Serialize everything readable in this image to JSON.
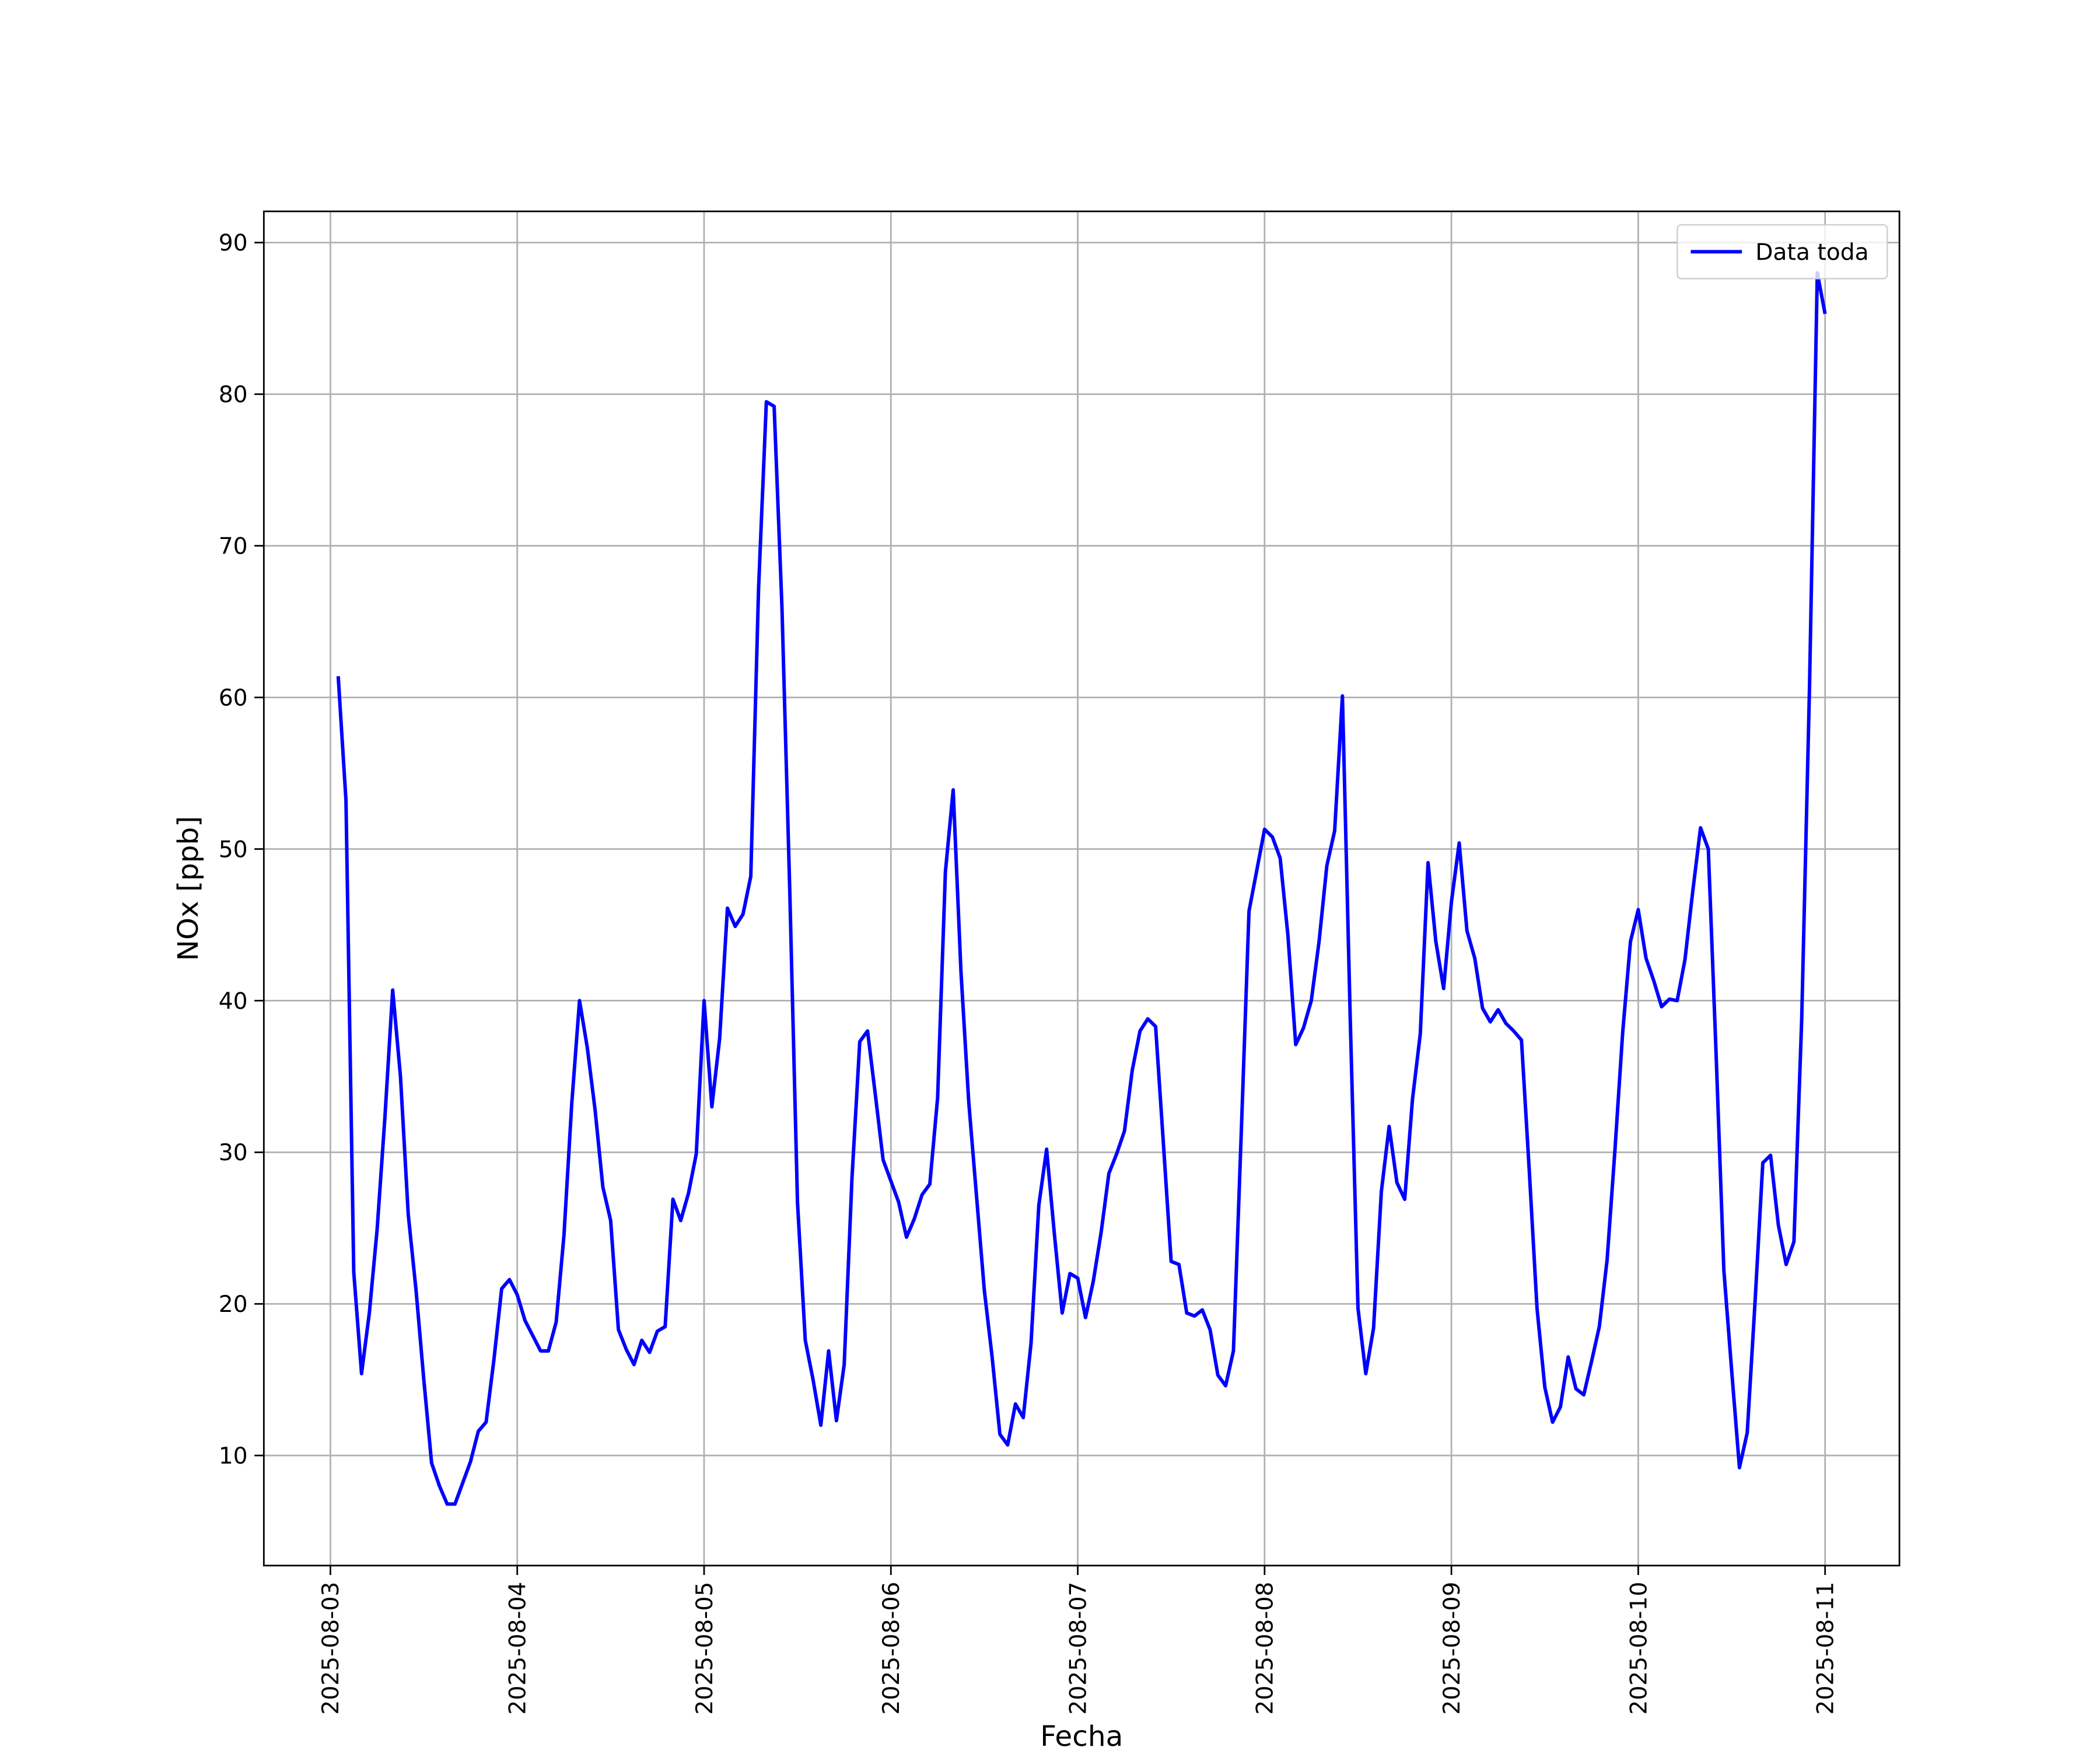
{
  "chart_data": {
    "type": "line",
    "xlabel": "Fecha",
    "ylabel": "NOx [ppb]",
    "x": [
      "2025-08-03 01:00",
      "2025-08-03 02:00",
      "2025-08-03 03:00",
      "2025-08-03 04:00",
      "2025-08-03 05:00",
      "2025-08-03 06:00",
      "2025-08-03 07:00",
      "2025-08-03 08:00",
      "2025-08-03 09:00",
      "2025-08-03 10:00",
      "2025-08-03 11:00",
      "2025-08-03 12:00",
      "2025-08-03 13:00",
      "2025-08-03 14:00",
      "2025-08-03 15:00",
      "2025-08-03 16:00",
      "2025-08-03 17:00",
      "2025-08-03 18:00",
      "2025-08-03 19:00",
      "2025-08-03 20:00",
      "2025-08-03 21:00",
      "2025-08-03 22:00",
      "2025-08-03 23:00",
      "2025-08-04 00:00",
      "2025-08-04 01:00",
      "2025-08-04 02:00",
      "2025-08-04 03:00",
      "2025-08-04 04:00",
      "2025-08-04 05:00",
      "2025-08-04 06:00",
      "2025-08-04 07:00",
      "2025-08-04 08:00",
      "2025-08-04 09:00",
      "2025-08-04 10:00",
      "2025-08-04 11:00",
      "2025-08-04 12:00",
      "2025-08-04 13:00",
      "2025-08-04 14:00",
      "2025-08-04 15:00",
      "2025-08-04 16:00",
      "2025-08-04 17:00",
      "2025-08-04 18:00",
      "2025-08-04 19:00",
      "2025-08-04 20:00",
      "2025-08-04 21:00",
      "2025-08-04 22:00",
      "2025-08-04 23:00",
      "2025-08-05 00:00",
      "2025-08-05 01:00",
      "2025-08-05 02:00",
      "2025-08-05 03:00",
      "2025-08-05 04:00",
      "2025-08-05 05:00",
      "2025-08-05 06:00",
      "2025-08-05 07:00",
      "2025-08-05 08:00",
      "2025-08-05 09:00",
      "2025-08-05 10:00",
      "2025-08-05 11:00",
      "2025-08-05 12:00",
      "2025-08-05 13:00",
      "2025-08-05 14:00",
      "2025-08-05 15:00",
      "2025-08-05 16:00",
      "2025-08-05 17:00",
      "2025-08-05 18:00",
      "2025-08-05 19:00",
      "2025-08-05 20:00",
      "2025-08-05 21:00",
      "2025-08-05 22:00",
      "2025-08-05 23:00",
      "2025-08-06 00:00",
      "2025-08-06 01:00",
      "2025-08-06 02:00",
      "2025-08-06 03:00",
      "2025-08-06 04:00",
      "2025-08-06 05:00",
      "2025-08-06 06:00",
      "2025-08-06 07:00",
      "2025-08-06 08:00",
      "2025-08-06 09:00",
      "2025-08-06 10:00",
      "2025-08-06 11:00",
      "2025-08-06 12:00",
      "2025-08-06 13:00",
      "2025-08-06 14:00",
      "2025-08-06 15:00",
      "2025-08-06 16:00",
      "2025-08-06 17:00",
      "2025-08-06 18:00",
      "2025-08-06 19:00",
      "2025-08-06 20:00",
      "2025-08-06 21:00",
      "2025-08-06 22:00",
      "2025-08-06 23:00",
      "2025-08-07 00:00",
      "2025-08-07 01:00",
      "2025-08-07 02:00",
      "2025-08-07 03:00",
      "2025-08-07 04:00",
      "2025-08-07 05:00",
      "2025-08-07 06:00",
      "2025-08-07 07:00",
      "2025-08-07 08:00",
      "2025-08-07 09:00",
      "2025-08-07 10:00",
      "2025-08-07 11:00",
      "2025-08-07 12:00",
      "2025-08-07 13:00",
      "2025-08-07 14:00",
      "2025-08-07 15:00",
      "2025-08-07 16:00",
      "2025-08-07 17:00",
      "2025-08-07 18:00",
      "2025-08-07 19:00",
      "2025-08-07 20:00",
      "2025-08-07 21:00",
      "2025-08-07 22:00",
      "2025-08-07 23:00",
      "2025-08-08 00:00",
      "2025-08-08 01:00",
      "2025-08-08 02:00",
      "2025-08-08 03:00",
      "2025-08-08 04:00",
      "2025-08-08 05:00",
      "2025-08-08 06:00",
      "2025-08-08 07:00",
      "2025-08-08 08:00",
      "2025-08-08 09:00",
      "2025-08-08 10:00",
      "2025-08-08 11:00",
      "2025-08-08 12:00",
      "2025-08-08 13:00",
      "2025-08-08 14:00",
      "2025-08-08 15:00",
      "2025-08-08 16:00",
      "2025-08-08 17:00",
      "2025-08-08 18:00",
      "2025-08-08 19:00",
      "2025-08-08 20:00",
      "2025-08-08 21:00",
      "2025-08-08 22:00",
      "2025-08-08 23:00",
      "2025-08-09 00:00",
      "2025-08-09 01:00",
      "2025-08-09 02:00",
      "2025-08-09 03:00",
      "2025-08-09 04:00",
      "2025-08-09 05:00",
      "2025-08-09 06:00",
      "2025-08-09 07:00",
      "2025-08-09 08:00",
      "2025-08-09 09:00",
      "2025-08-09 10:00",
      "2025-08-09 11:00",
      "2025-08-09 12:00",
      "2025-08-09 13:00",
      "2025-08-09 14:00",
      "2025-08-09 15:00",
      "2025-08-09 16:00",
      "2025-08-09 17:00",
      "2025-08-09 18:00",
      "2025-08-09 19:00",
      "2025-08-09 20:00",
      "2025-08-09 21:00",
      "2025-08-09 22:00",
      "2025-08-09 23:00",
      "2025-08-10 00:00",
      "2025-08-10 01:00",
      "2025-08-10 02:00",
      "2025-08-10 03:00",
      "2025-08-10 04:00",
      "2025-08-10 05:00",
      "2025-08-10 06:00",
      "2025-08-10 07:00",
      "2025-08-10 08:00",
      "2025-08-10 09:00",
      "2025-08-10 10:00",
      "2025-08-10 11:00",
      "2025-08-10 12:00",
      "2025-08-10 13:00",
      "2025-08-10 14:00",
      "2025-08-10 15:00",
      "2025-08-10 16:00",
      "2025-08-10 17:00",
      "2025-08-10 18:00",
      "2025-08-10 19:00",
      "2025-08-10 20:00",
      "2025-08-10 21:00",
      "2025-08-10 22:00",
      "2025-08-10 23:00",
      "2025-08-11 00:00"
    ],
    "series": [
      {
        "name": "Data toda",
        "color": "#0000ff",
        "values": [
          61.4,
          53.2,
          22.1,
          15.4,
          19.4,
          24.9,
          32.3,
          40.7,
          35.0,
          25.9,
          20.9,
          15.0,
          9.5,
          8.0,
          6.8,
          6.8,
          8.2,
          9.6,
          11.6,
          12.2,
          16.3,
          21.0,
          21.6,
          20.6,
          18.9,
          17.9,
          16.9,
          16.9,
          18.8,
          24.5,
          33.2,
          40.0,
          36.9,
          32.8,
          27.7,
          25.5,
          18.3,
          17.0,
          16.0,
          17.6,
          16.8,
          18.2,
          18.5,
          26.9,
          25.5,
          27.3,
          29.9,
          40.0,
          33.0,
          37.5,
          46.1,
          44.9,
          45.7,
          48.2,
          67.2,
          79.5,
          79.2,
          66.0,
          47.4,
          26.7,
          17.6,
          15.0,
          12.0,
          16.9,
          12.3,
          16.0,
          28.3,
          37.3,
          38.0,
          33.8,
          29.5,
          28.1,
          26.7,
          24.4,
          25.6,
          27.2,
          27.9,
          33.6,
          48.5,
          53.9,
          41.9,
          33.3,
          27.1,
          20.9,
          16.5,
          11.4,
          10.7,
          13.4,
          12.5,
          17.4,
          26.5,
          30.2,
          24.6,
          19.4,
          22.0,
          21.7,
          19.1,
          21.5,
          24.7,
          28.6,
          29.9,
          31.4,
          35.4,
          38.0,
          38.8,
          38.3,
          30.6,
          22.8,
          22.6,
          19.4,
          19.2,
          19.6,
          18.3,
          15.3,
          14.6,
          16.9,
          31.2,
          45.9,
          48.6,
          51.3,
          50.8,
          49.4,
          44.3,
          37.1,
          38.2,
          40.0,
          43.9,
          48.9,
          51.2,
          60.1,
          38.9,
          19.7,
          15.4,
          18.4,
          27.4,
          31.7,
          28.0,
          26.9,
          33.5,
          37.8,
          49.1,
          43.9,
          40.8,
          46.5,
          50.4,
          44.6,
          42.8,
          39.5,
          38.6,
          39.4,
          38.5,
          38.0,
          37.4,
          28.8,
          19.7,
          14.5,
          12.2,
          13.2,
          16.5,
          14.4,
          14.0,
          16.2,
          18.5,
          22.9,
          30.1,
          37.9,
          43.9,
          46.0,
          42.8,
          41.3,
          39.6,
          40.1,
          40.0,
          42.7,
          47.2,
          51.4,
          50.0,
          36.5,
          22.2,
          15.6,
          9.2,
          11.5,
          20.1,
          29.3,
          29.8,
          25.2,
          22.6,
          24.1,
          38.8,
          60.7,
          88.0,
          85.3
        ]
      }
    ],
    "xlim": [
      "2025-08-02 15:27",
      "2025-08-11 09:33"
    ],
    "xticks": [
      "2025-08-03",
      "2025-08-04",
      "2025-08-05",
      "2025-08-06",
      "2025-08-07",
      "2025-08-08",
      "2025-08-09",
      "2025-08-10",
      "2025-08-11"
    ],
    "ylim": [
      2.74,
      92.06
    ],
    "yticks": [
      10,
      20,
      30,
      40,
      50,
      60,
      70,
      80,
      90
    ],
    "grid": true,
    "legend": "upper right"
  }
}
